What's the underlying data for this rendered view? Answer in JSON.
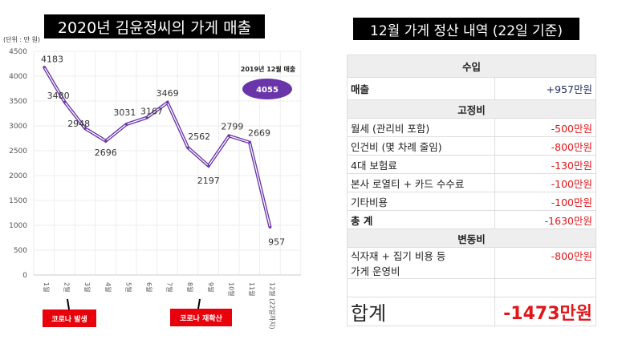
{
  "left_title": "2020년 김윤정씨의 가게 매출",
  "right_title": "12월 가게 정산 내역 (22일 기준)",
  "chart_data": {
    "type": "line",
    "unit_label": "(단위 : 만 원)",
    "categories": [
      "1월",
      "2월",
      "3월",
      "4월",
      "5월",
      "6월",
      "7월",
      "8월",
      "9월",
      "10월",
      "11월",
      "12월 (22일까지)"
    ],
    "values": [
      4183,
      3480,
      2948,
      2696,
      3031,
      3167,
      3469,
      2562,
      2197,
      2799,
      2669,
      957
    ],
    "ylim": [
      0,
      4500
    ],
    "yticks": [
      0,
      500,
      1000,
      1500,
      2000,
      2500,
      3000,
      3500,
      4000,
      4500
    ],
    "series_color": "#6a35a8",
    "grid": true,
    "annotation": {
      "label": "2019년 12월 매출",
      "value": "4055",
      "color": "#6a35a8"
    },
    "event_tags": [
      {
        "label": "코로나 발생",
        "category": "2월"
      },
      {
        "label": "코로나 재확산",
        "category": "9월"
      }
    ]
  },
  "table": {
    "income_header": "수입",
    "sales": {
      "label": "매출",
      "value": "+957만원",
      "color": "#1f2d5a"
    },
    "fixed_header": "고정비",
    "fixed": [
      {
        "label": "월세 (관리비 포함)",
        "value": "-500만원"
      },
      {
        "label": "인건비 (몇 차례 줄임)",
        "value": "-800만원"
      },
      {
        "label": "4대 보험료",
        "value": "-130만원"
      },
      {
        "label": "본사 로열티 + 카드 수수료",
        "value": "-100만원"
      },
      {
        "label": "기타비용",
        "value": "-100만원"
      }
    ],
    "fixed_total": {
      "label": "총 계",
      "value": "-1630만원"
    },
    "variable_header": "변동비",
    "variable": {
      "label1": "식자재 + 집기 비용 등",
      "label2": "가게 운영비",
      "value": "-800만원"
    },
    "grand_total": {
      "label": "합계",
      "value": "-1473만원"
    }
  }
}
